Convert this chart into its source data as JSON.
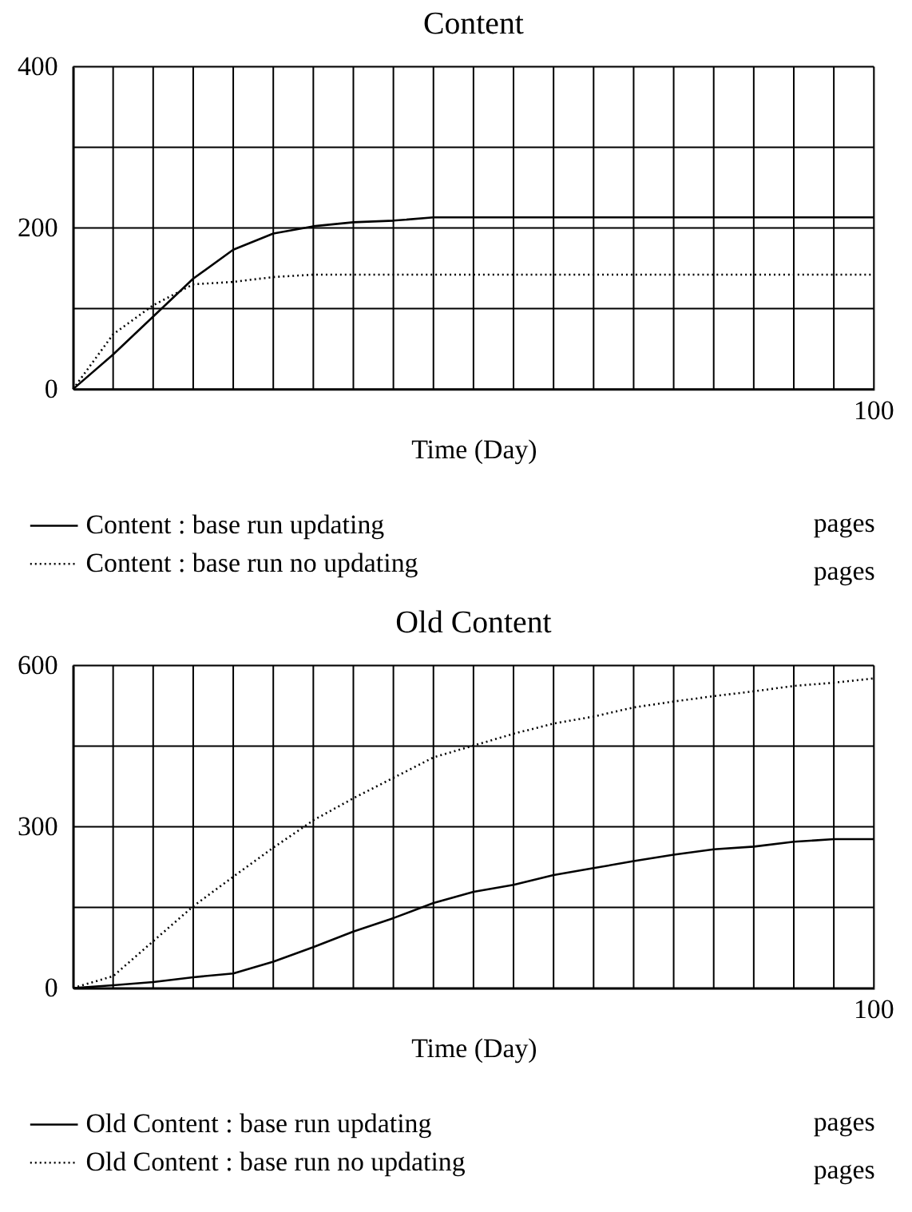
{
  "chart_data": [
    {
      "type": "line",
      "title": "Content",
      "xlabel": "Time (Day)",
      "categories": [
        null,
        null,
        null,
        null,
        null,
        null,
        null,
        null,
        null,
        null,
        null,
        null,
        null,
        null,
        null,
        null,
        null,
        null,
        null,
        null,
        null
      ],
      "ylim": [
        0,
        400
      ],
      "yticks": [
        0,
        {
          "value": 100,
          "label": null
        },
        200,
        {
          "value": 300,
          "label": null
        },
        400
      ],
      "grid": true,
      "legend": "bottom",
      "tick_labels": "y",
      "annotations": [
        "100",
        "pages",
        "pages"
      ],
      "series": [
        {
          "name": "Content : base run updating",
          "color": "#000000",
          "line_style": "solid",
          "values": [
            0,
            43,
            90,
            137,
            173,
            193,
            202,
            207,
            209,
            213,
            213,
            213,
            213,
            213,
            213,
            213,
            213,
            213,
            213,
            213,
            213
          ]
        },
        {
          "name": "Content : base run no updating",
          "color": "#000000",
          "line_style": "dotted",
          "values": [
            0,
            68,
            104,
            130,
            133,
            139,
            142,
            142,
            142,
            142,
            142,
            142,
            142,
            142,
            142,
            142,
            142,
            142,
            142,
            142,
            142
          ]
        }
      ]
    },
    {
      "type": "line",
      "title": "Old Content",
      "xlabel": "Time (Day)",
      "categories": [
        null,
        null,
        null,
        null,
        null,
        null,
        null,
        null,
        null,
        null,
        null,
        null,
        null,
        null,
        null,
        null,
        null,
        null,
        null,
        null,
        null
      ],
      "ylim": [
        0,
        600
      ],
      "yticks": [
        0,
        {
          "value": 150,
          "label": null
        },
        300,
        {
          "value": 450,
          "label": null
        },
        600
      ],
      "grid": true,
      "legend": "bottom",
      "tick_labels": "y",
      "annotations": [
        "100",
        "pages",
        "pages"
      ],
      "series": [
        {
          "name": "Old Content : base run updating",
          "color": "#000000",
          "line_style": "solid",
          "values": [
            0,
            5,
            11,
            20,
            27,
            49,
            76,
            105,
            130,
            158,
            179,
            192,
            210,
            223,
            236,
            248,
            258,
            263,
            272,
            277,
            277
          ]
        },
        {
          "name": "Old Content : base run no updating",
          "color": "#000000",
          "line_style": "dotted",
          "values": [
            0,
            22,
            87,
            152,
            207,
            261,
            312,
            353,
            391,
            429,
            451,
            473,
            492,
            505,
            522,
            533,
            543,
            552,
            562,
            568,
            576
          ]
        }
      ]
    }
  ]
}
